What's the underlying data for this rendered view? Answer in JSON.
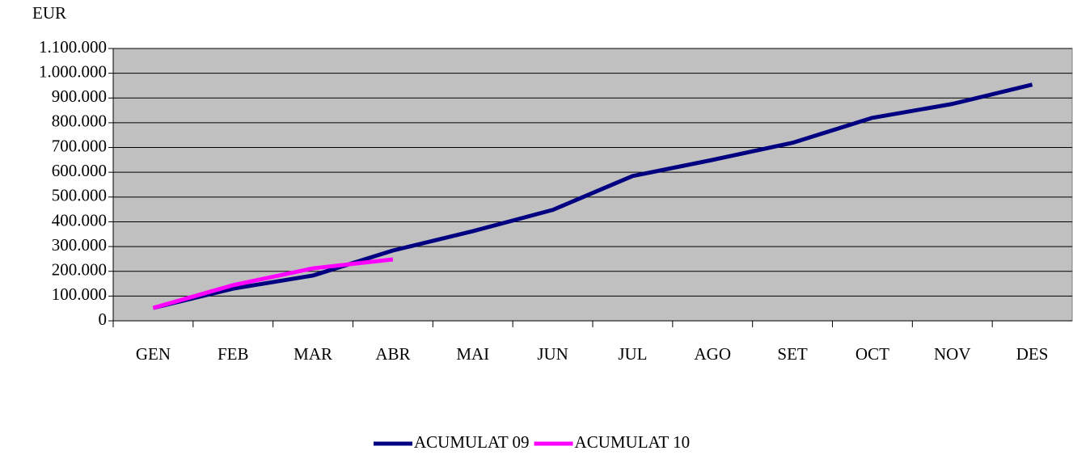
{
  "chart_data": {
    "type": "line",
    "y_axis_label": "EUR",
    "categories": [
      "GEN",
      "FEB",
      "MAR",
      "ABR",
      "MAI",
      "JUN",
      "JUL",
      "AGO",
      "SET",
      "OCT",
      "NOV",
      "DES"
    ],
    "series": [
      {
        "name": "ACUMULAT 09",
        "color": "#000080",
        "values": [
          52000,
          130000,
          183000,
          284000,
          362000,
          448000,
          585000,
          650000,
          719000,
          820000,
          876000,
          954000
        ]
      },
      {
        "name": "ACUMULAT 10",
        "color": "#ff00ff",
        "values": [
          52000,
          144000,
          212000,
          248000,
          null,
          null,
          null,
          null,
          null,
          null,
          null,
          null
        ]
      }
    ],
    "ylim": [
      0,
      1100000
    ],
    "yticks": [
      0,
      {
        "value": 100000,
        "label": "100.000"
      },
      {
        "value": 200000,
        "label": "200.000"
      },
      {
        "value": 300000,
        "label": "300.000"
      },
      {
        "value": 400000,
        "label": "400.000"
      },
      {
        "value": 500000,
        "label": "500.000"
      },
      {
        "value": 600000,
        "label": "600.000"
      },
      {
        "value": 700000,
        "label": "700.000"
      },
      {
        "value": 800000,
        "label": "800.000"
      },
      {
        "value": 900000,
        "label": "900.000"
      },
      {
        "value": 1000000,
        "label": "1.000.000"
      },
      {
        "value": 1100000,
        "label": "1.100.000"
      }
    ],
    "grid": true,
    "legend": "bottom"
  }
}
